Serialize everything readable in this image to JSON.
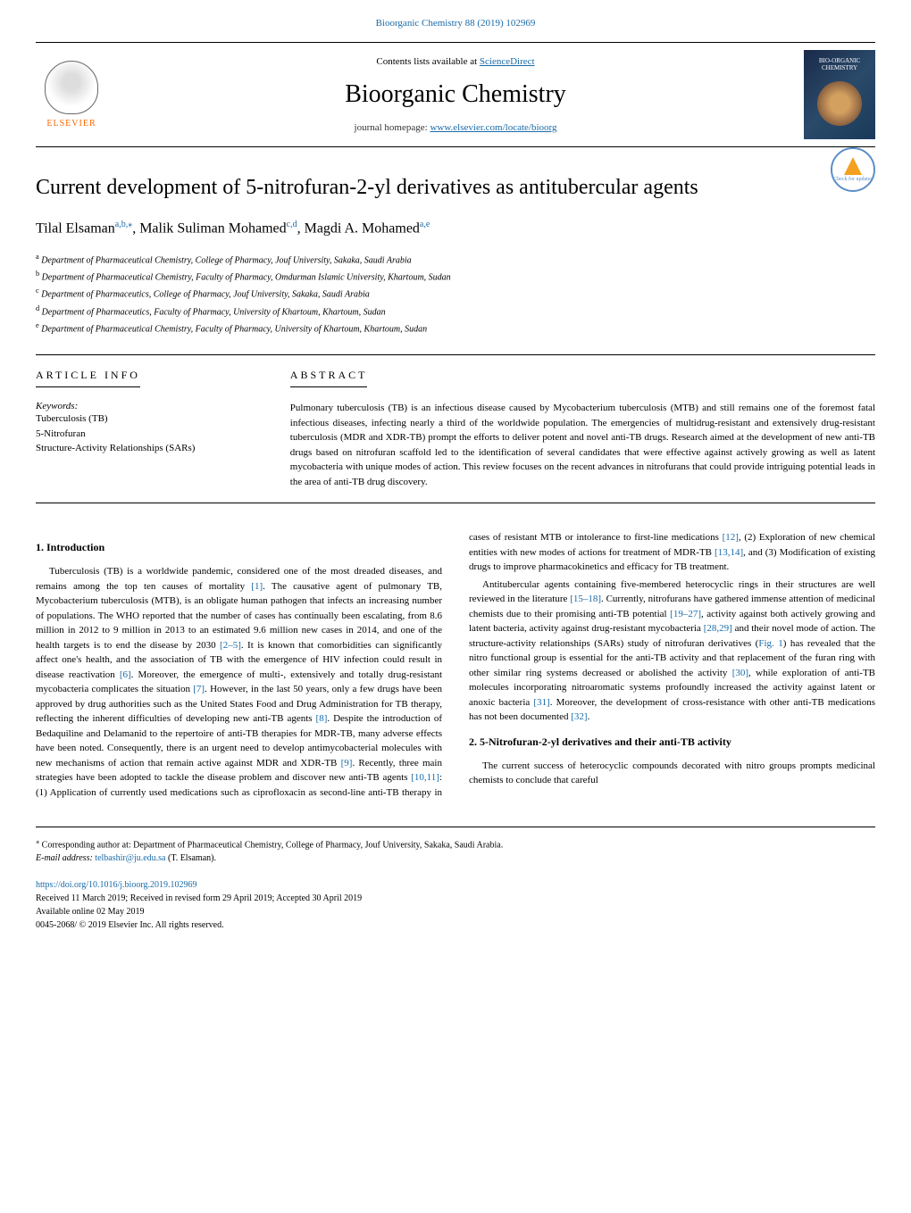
{
  "header": {
    "journal_citation": "Bioorganic Chemistry 88 (2019) 102969",
    "contents_text": "Contents lists available at ",
    "contents_link": "ScienceDirect",
    "journal_name": "Bioorganic Chemistry",
    "homepage_text": "journal homepage: ",
    "homepage_link": "www.elsevier.com/locate/bioorg",
    "elsevier_label": "ELSEVIER",
    "cover_title": "BIO-ORGANIC CHEMISTRY",
    "updates_label": "Check for updates"
  },
  "article": {
    "title": "Current development of 5-nitrofuran-2-yl derivatives as antitubercular agents",
    "authors_html": "Tilal Elsaman",
    "author1": "Tilal Elsaman",
    "author1_sup": "a,b,",
    "author1_star": "⁎",
    "author2": ", Malik Suliman Mohamed",
    "author2_sup": "c,d",
    "author3": ", Magdi A. Mohamed",
    "author3_sup": "a,e",
    "affiliations": {
      "a": "Department of Pharmaceutical Chemistry, College of Pharmacy, Jouf University, Sakaka, Saudi Arabia",
      "b": "Department of Pharmaceutical Chemistry, Faculty of Pharmacy, Omdurman Islamic University, Khartoum, Sudan",
      "c": "Department of Pharmaceutics, College of Pharmacy, Jouf University, Sakaka, Saudi Arabia",
      "d": "Department of Pharmaceutics, Faculty of Pharmacy, University of Khartoum, Khartoum, Sudan",
      "e": "Department of Pharmaceutical Chemistry, Faculty of Pharmacy, University of Khartoum, Khartoum, Sudan"
    }
  },
  "info": {
    "heading": "ARTICLE INFO",
    "keywords_label": "Keywords:",
    "keywords": [
      "Tuberculosis (TB)",
      "5-Nitrofuran",
      "Structure-Activity Relationships (SARs)"
    ]
  },
  "abstract": {
    "heading": "ABSTRACT",
    "text": "Pulmonary tuberculosis (TB) is an infectious disease caused by Mycobacterium tuberculosis (MTB) and still remains one of the foremost fatal infectious diseases, infecting nearly a third of the worldwide population. The emergencies of multidrug-resistant and extensively drug-resistant tuberculosis (MDR and XDR-TB) prompt the efforts to deliver potent and novel anti-TB drugs. Research aimed at the development of new anti-TB drugs based on nitrofuran scaffold led to the identification of several candidates that were effective against actively growing as well as latent mycobacteria with unique modes of action. This review focuses on the recent advances in nitrofurans that could provide intriguing potential leads in the area of anti-TB drug discovery."
  },
  "sections": {
    "s1_heading": "1. Introduction",
    "s1_p1a": "Tuberculosis (TB) is a worldwide pandemic, considered one of the most dreaded diseases, and remains among the top ten causes of mortality ",
    "s1_ref1": "[1]",
    "s1_p1b": ". The causative agent of pulmonary TB, Mycobacterium tuberculosis (MTB), is an obligate human pathogen that infects an increasing number of populations. The WHO reported that the number of cases has continually been escalating, from 8.6 million in 2012 to 9 million in 2013 to an estimated 9.6 million new cases in 2014, and one of the health targets is to end the disease by 2030 ",
    "s1_ref2": "[2–5]",
    "s1_p1c": ". It is known that comorbidities can significantly affect one's health, and the association of TB with the emergence of HIV infection could result in disease reactivation ",
    "s1_ref3": "[6]",
    "s1_p1d": ". Moreover, the emergence of multi-, extensively and totally drug-resistant mycobacteria complicates the situation ",
    "s1_ref4": "[7]",
    "s1_p1e": ". However, in the last 50 years, only a few drugs have been approved by drug authorities such as the United States Food and Drug Administration for TB therapy, reflecting the inherent difficulties of developing new anti-TB agents ",
    "s1_ref5": "[8]",
    "s1_p1f": ". Despite the introduction of Bedaquiline and Delamanid to the repertoire of anti-TB therapies for MDR-TB, many adverse effects have been noted. Consequently, there is an urgent need to develop antimycobacterial molecules with new mechanisms of action that remain active against MDR and XDR-TB ",
    "s1_ref6": "[9]",
    "s1_p1g": ". Recently, three main strategies have been adopted to tackle the disease problem and discover new anti-TB agents ",
    "s1_ref7": "[10,11]",
    "s1_p1h": ": (1) Application of currently used medications such as ciprofloxacin as second-line anti-TB therapy in cases of resistant MTB or intolerance to first-line medications ",
    "s1_ref8": "[12]",
    "s1_p1i": ", (2) Exploration of new chemical entities with new modes of actions for treatment of MDR-TB ",
    "s1_ref9": "[13,14]",
    "s1_p1j": ", and (3) Modification of existing drugs to improve pharmacokinetics and efficacy for TB treatment.",
    "s1_p2a": "Antitubercular agents containing five-membered heterocyclic rings in their structures are well reviewed in the literature ",
    "s1_ref10": "[15–18]",
    "s1_p2b": ". Currently, nitrofurans have gathered immense attention of medicinal chemists due to their promising anti-TB potential ",
    "s1_ref11": "[19–27]",
    "s1_p2c": ", activity against both actively growing and latent bacteria, activity against drug-resistant mycobacteria ",
    "s1_ref12": "[28,29]",
    "s1_p2d": " and their novel mode of action. The structure-activity relationships (SARs) study of nitrofuran derivatives (",
    "s1_fig1": "Fig. 1",
    "s1_p2e": ") has revealed that the nitro functional group is essential for the anti-TB activity and that replacement of the furan ring with other similar ring systems decreased or abolished the activity ",
    "s1_ref13": "[30]",
    "s1_p2f": ", while exploration of anti-TB molecules incorporating nitroaromatic systems profoundly increased the activity against latent or anoxic bacteria ",
    "s1_ref14": "[31]",
    "s1_p2g": ". Moreover, the development of cross-resistance with other anti-TB medications has not been documented ",
    "s1_ref15": "[32]",
    "s1_p2h": ".",
    "s2_heading": "2. 5-Nitrofuran-2-yl derivatives and their anti-TB activity",
    "s2_p1": "The current success of heterocyclic compounds decorated with nitro groups prompts medicinal chemists to conclude that careful"
  },
  "footer": {
    "corresponding_marker": "⁎",
    "corresponding_text": " Corresponding author at: Department of Pharmaceutical Chemistry, College of Pharmacy, Jouf University, Sakaka, Saudi Arabia.",
    "email_label": "E-mail address: ",
    "email": "telbashir@ju.edu.sa",
    "email_suffix": " (T. Elsaman).",
    "doi": "https://doi.org/10.1016/j.bioorg.2019.102969",
    "received": "Received 11 March 2019; Received in revised form 29 April 2019; Accepted 30 April 2019",
    "available": "Available online 02 May 2019",
    "copyright": "0045-2068/ © 2019 Elsevier Inc. All rights reserved."
  },
  "colors": {
    "link_color": "#1a6ba8",
    "elsevier_orange": "#ff6600",
    "text_color": "#000000",
    "background": "#ffffff"
  }
}
